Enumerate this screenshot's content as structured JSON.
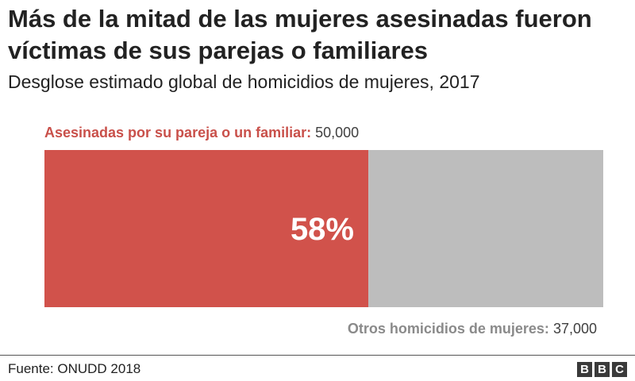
{
  "chart_data": {
    "type": "bar",
    "title": "Más de la mitad de las mujeres asesinadas fueron víctimas de sus parejas o familiares",
    "subtitle": "Desglose estimado global de homicidios de mujeres, 2017",
    "categories": [
      "Asesinadas por su pareja o un familiar",
      "Otros homicidios de mujeres"
    ],
    "values": [
      50000,
      37000
    ],
    "value_labels": [
      "50,000",
      "37,000"
    ],
    "share_label": "58%",
    "share_fraction": 0.58,
    "colors": [
      "#d1524b",
      "#bdbdbd"
    ],
    "stacked": true,
    "grid": false
  },
  "labels": {
    "primary_name": "Asesinadas por su pareja o un familiar:",
    "primary_value": "50,000",
    "secondary_name": "Otros homicidios de mujeres:",
    "secondary_value": "37,000"
  },
  "footer": {
    "source": "Fuente: ONUDD 2018",
    "logo_letters": [
      "B",
      "B",
      "C"
    ]
  },
  "colors": {
    "primary_label": "#c9504a",
    "secondary_label": "#8a8a8a"
  }
}
